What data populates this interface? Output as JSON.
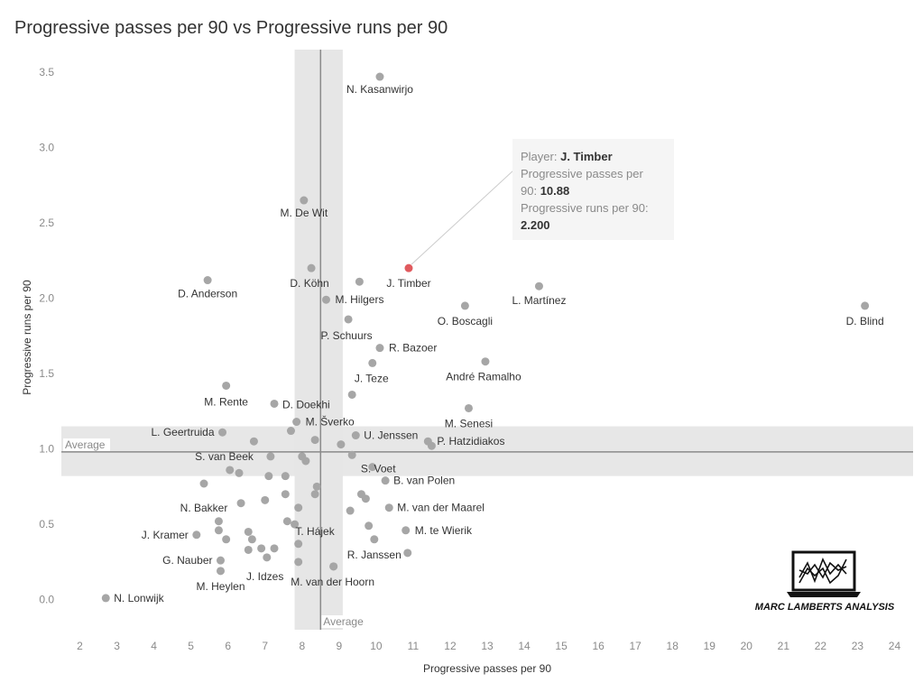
{
  "chart_data": {
    "type": "scatter",
    "title": "Progressive passes per 90 vs Progressive runs per 90",
    "xlabel": "Progressive passes per 90",
    "ylabel": "Progressive runs per 90",
    "xlim": [
      1.5,
      24.5
    ],
    "ylim": [
      -0.2,
      3.65
    ],
    "xticks": [
      2,
      3,
      4,
      5,
      6,
      7,
      8,
      9,
      10,
      11,
      12,
      13,
      14,
      15,
      16,
      17,
      18,
      19,
      20,
      21,
      22,
      23,
      24
    ],
    "yticks": [
      0.0,
      0.5,
      1.0,
      1.5,
      2.0,
      2.5,
      3.0,
      3.5
    ],
    "ytick_labels": [
      "0.0",
      "0.5",
      "1.0",
      "1.5",
      "2.0",
      "2.5",
      "3.0",
      "3.5"
    ],
    "grid": false,
    "x_average": 8.5,
    "x_average_band": [
      7.8,
      9.1
    ],
    "y_average": 0.98,
    "y_average_band": [
      0.82,
      1.15
    ],
    "average_label": "Average",
    "colors": {
      "point": "#a6a6a6",
      "highlight": "#e05a5e",
      "band": "#e6e6e6",
      "ref_line": "#8a8a8a"
    },
    "highlight": {
      "player": "J. Timber",
      "x": 10.88,
      "y": 2.2,
      "tooltip": {
        "player_key": "Player:",
        "player_value": "J. Timber",
        "passes_key_line1": "Progressive passes per",
        "passes_key_line2": "90:",
        "passes_value": "10.88",
        "runs_key": "Progressive runs per 90:",
        "runs_value": "2.200"
      }
    },
    "points": [
      {
        "label": "N. Kasanwirjo",
        "x": 10.1,
        "y": 3.47
      },
      {
        "label": "M. De Wit",
        "x": 8.05,
        "y": 2.65
      },
      {
        "label": "D. Anderson",
        "x": 5.45,
        "y": 2.12
      },
      {
        "label": "D. Köhn",
        "x": 8.25,
        "y": 2.2
      },
      {
        "label": "",
        "x": 9.55,
        "y": 2.11
      },
      {
        "label": "J. Timber",
        "x": 10.88,
        "y": 2.2
      },
      {
        "label": "L. Martínez",
        "x": 14.4,
        "y": 2.08
      },
      {
        "label": "M. Hilgers",
        "x": 8.65,
        "y": 1.99
      },
      {
        "label": "O. Boscagli",
        "x": 12.4,
        "y": 1.95
      },
      {
        "label": "D. Blind",
        "x": 23.2,
        "y": 1.95
      },
      {
        "label": "P. Schuurs",
        "x": 9.25,
        "y": 1.86
      },
      {
        "label": "R. Bazoer",
        "x": 10.1,
        "y": 1.67
      },
      {
        "label": "André Ramalho",
        "x": 12.95,
        "y": 1.58
      },
      {
        "label": "J. Teze",
        "x": 9.9,
        "y": 1.57
      },
      {
        "label": "M. Rente",
        "x": 5.95,
        "y": 1.42
      },
      {
        "label": "",
        "x": 9.35,
        "y": 1.36
      },
      {
        "label": "D. Doekhi",
        "x": 7.25,
        "y": 1.3
      },
      {
        "label": "M. Senesi",
        "x": 12.5,
        "y": 1.27
      },
      {
        "label": "M. Šverko",
        "x": 7.85,
        "y": 1.18
      },
      {
        "label": "",
        "x": 7.7,
        "y": 1.12
      },
      {
        "label": "L. Geertruida",
        "x": 5.85,
        "y": 1.11
      },
      {
        "label": "U. Jenssen",
        "x": 9.45,
        "y": 1.09
      },
      {
        "label": "",
        "x": 8.35,
        "y": 1.06
      },
      {
        "label": "",
        "x": 6.7,
        "y": 1.05
      },
      {
        "label": "P. Hatzidiakos",
        "x": 11.4,
        "y": 1.05
      },
      {
        "label": "",
        "x": 11.5,
        "y": 1.02
      },
      {
        "label": "",
        "x": 9.05,
        "y": 1.03
      },
      {
        "label": "S. van Beek",
        "x": 7.15,
        "y": 0.95
      },
      {
        "label": "",
        "x": 8.0,
        "y": 0.95
      },
      {
        "label": "",
        "x": 8.1,
        "y": 0.92
      },
      {
        "label": "S. Voet",
        "x": 9.35,
        "y": 0.96
      },
      {
        "label": "",
        "x": 9.9,
        "y": 0.88
      },
      {
        "label": "",
        "x": 6.05,
        "y": 0.86
      },
      {
        "label": "",
        "x": 6.3,
        "y": 0.84
      },
      {
        "label": "",
        "x": 7.1,
        "y": 0.82
      },
      {
        "label": "",
        "x": 7.55,
        "y": 0.82
      },
      {
        "label": "B. van Polen",
        "x": 10.25,
        "y": 0.79
      },
      {
        "label": "N. Bakker",
        "x": 5.35,
        "y": 0.77
      },
      {
        "label": "",
        "x": 8.4,
        "y": 0.75
      },
      {
        "label": "",
        "x": 7.55,
        "y": 0.7
      },
      {
        "label": "",
        "x": 8.35,
        "y": 0.7
      },
      {
        "label": "",
        "x": 9.6,
        "y": 0.7
      },
      {
        "label": "",
        "x": 9.72,
        "y": 0.67
      },
      {
        "label": "",
        "x": 7.0,
        "y": 0.66
      },
      {
        "label": "",
        "x": 6.35,
        "y": 0.64
      },
      {
        "label": "M. van der Maarel",
        "x": 10.35,
        "y": 0.61
      },
      {
        "label": "",
        "x": 7.9,
        "y": 0.61
      },
      {
        "label": "",
        "x": 9.3,
        "y": 0.59
      },
      {
        "label": "",
        "x": 5.75,
        "y": 0.52
      },
      {
        "label": "T. Hájek",
        "x": 7.6,
        "y": 0.52
      },
      {
        "label": "",
        "x": 7.8,
        "y": 0.5
      },
      {
        "label": "",
        "x": 9.8,
        "y": 0.49
      },
      {
        "label": "M. te Wierik",
        "x": 10.8,
        "y": 0.46
      },
      {
        "label": "",
        "x": 5.75,
        "y": 0.46
      },
      {
        "label": "",
        "x": 6.55,
        "y": 0.45
      },
      {
        "label": "J. Kramer",
        "x": 5.15,
        "y": 0.43
      },
      {
        "label": "",
        "x": 5.95,
        "y": 0.4
      },
      {
        "label": "",
        "x": 6.65,
        "y": 0.4
      },
      {
        "label": "",
        "x": 9.95,
        "y": 0.4
      },
      {
        "label": "",
        "x": 7.9,
        "y": 0.37
      },
      {
        "label": "",
        "x": 6.55,
        "y": 0.33
      },
      {
        "label": "",
        "x": 6.9,
        "y": 0.34
      },
      {
        "label": "",
        "x": 7.25,
        "y": 0.34
      },
      {
        "label": "R. Janssen",
        "x": 10.85,
        "y": 0.31
      },
      {
        "label": "",
        "x": 7.05,
        "y": 0.28
      },
      {
        "label": "G. Nauber",
        "x": 5.8,
        "y": 0.26
      },
      {
        "label": "",
        "x": 7.9,
        "y": 0.25
      },
      {
        "label": "J. Idzes",
        "x": 8.85,
        "y": 0.22
      },
      {
        "label": "M. van der Hoorn",
        "x": 8.85,
        "y": 0.22
      },
      {
        "label": "M. Heylen",
        "x": 5.8,
        "y": 0.19
      },
      {
        "label": "N. Lonwijk",
        "x": 2.7,
        "y": 0.01
      }
    ]
  },
  "branding": {
    "text": "MARC LAMBERTS ANALYSIS",
    "icon": "laptop-chart-icon"
  }
}
